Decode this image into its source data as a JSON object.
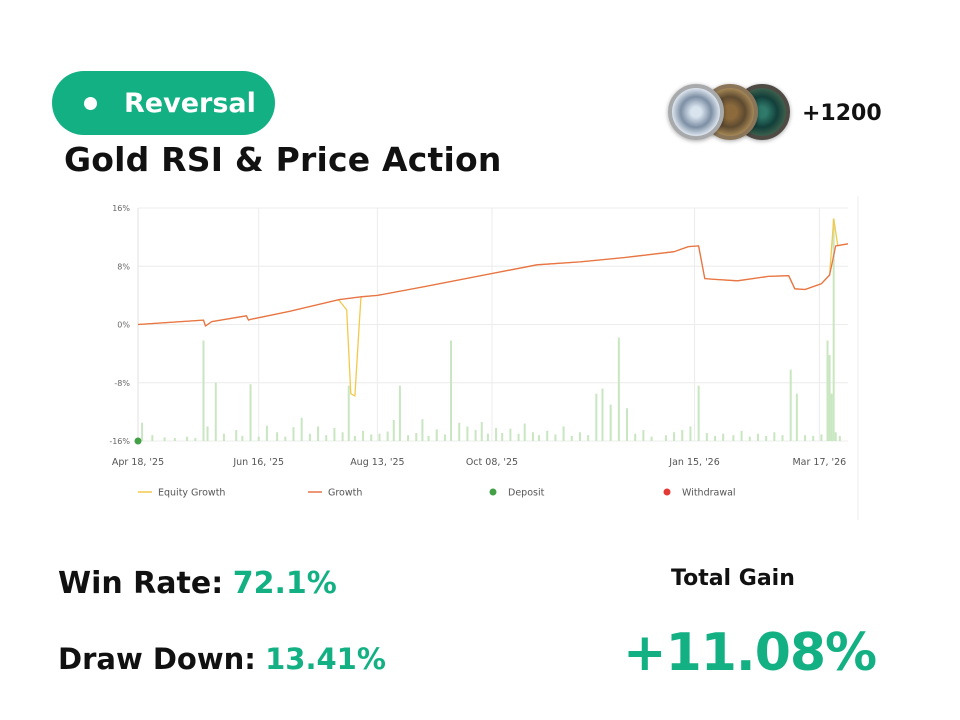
{
  "badge": {
    "label": "Reversal",
    "color": "#13b083"
  },
  "strategy": {
    "title": "Gold RSI & Price Action"
  },
  "coins": {
    "count_label": "+1200"
  },
  "stats": {
    "win_rate_label": "Win Rate:",
    "win_rate_value": "72.1%",
    "draw_down_label": "Draw Down:",
    "draw_down_value": "13.41%",
    "total_gain_label": "Total Gain",
    "total_gain_value": "+11.08%"
  },
  "chart_data": {
    "type": "line",
    "title": "",
    "xlabel": "",
    "ylabel": "",
    "y_ticks": [
      "16%",
      "8%",
      "0%",
      "-8%",
      "-16%"
    ],
    "ylim": [
      -16,
      16
    ],
    "x_ticks": [
      "Apr 18, '25",
      "Jun 16, '25",
      "Aug 13, '25",
      "Oct 08, '25",
      "Jan 15, '26",
      "Mar 17, '26"
    ],
    "x_tick_dates": [
      "2025-04-18",
      "2025-06-16",
      "2025-08-13",
      "2025-10-08",
      "2026-01-15",
      "2026-03-17"
    ],
    "xlim": [
      "2025-04-18",
      "2026-03-31"
    ],
    "grid": true,
    "legend": {
      "placement": "bottom",
      "entries": [
        "Equity Growth",
        "Growth",
        "Deposit",
        "Withdrawal"
      ]
    },
    "colors": {
      "equity_growth": "#f2c94c",
      "growth": "#e8734a",
      "deposit": "#43a047",
      "withdrawal": "#e53935",
      "bars": "#c8e6c0"
    },
    "series": [
      {
        "name": "Growth",
        "points": [
          [
            "2025-04-18",
            0.0
          ],
          [
            "2025-05-20",
            0.6
          ],
          [
            "2025-05-21",
            -0.2
          ],
          [
            "2025-05-24",
            0.4
          ],
          [
            "2025-06-10",
            1.2
          ],
          [
            "2025-06-11",
            0.6
          ],
          [
            "2025-06-12",
            0.7
          ],
          [
            "2025-07-01",
            1.8
          ],
          [
            "2025-07-25",
            3.4
          ],
          [
            "2025-08-05",
            3.8
          ],
          [
            "2025-08-13",
            4.0
          ],
          [
            "2025-09-05",
            5.2
          ],
          [
            "2025-10-08",
            7.0
          ],
          [
            "2025-10-30",
            8.2
          ],
          [
            "2025-11-20",
            8.6
          ],
          [
            "2025-12-12",
            9.2
          ],
          [
            "2026-01-05",
            10.0
          ],
          [
            "2026-01-12",
            10.7
          ],
          [
            "2026-01-17",
            10.8
          ],
          [
            "2026-01-20",
            6.3
          ],
          [
            "2026-01-25",
            6.2
          ],
          [
            "2026-02-05",
            6.0
          ],
          [
            "2026-02-20",
            6.6
          ],
          [
            "2026-03-02",
            6.7
          ],
          [
            "2026-03-05",
            4.9
          ],
          [
            "2026-03-10",
            4.8
          ],
          [
            "2026-03-18",
            5.6
          ],
          [
            "2026-03-22",
            6.8
          ],
          [
            "2026-03-25",
            10.8
          ],
          [
            "2026-03-31",
            11.08
          ]
        ]
      },
      {
        "name": "Equity Growth",
        "points": [
          [
            "2025-04-18",
            0.0
          ],
          [
            "2025-05-20",
            0.6
          ],
          [
            "2025-05-21",
            -0.2
          ],
          [
            "2025-05-24",
            0.4
          ],
          [
            "2025-06-10",
            1.2
          ],
          [
            "2025-06-11",
            0.6
          ],
          [
            "2025-06-12",
            0.7
          ],
          [
            "2025-07-01",
            1.8
          ],
          [
            "2025-07-25",
            3.4
          ],
          [
            "2025-07-29",
            2.0
          ],
          [
            "2025-07-31",
            -9.5
          ],
          [
            "2025-08-02",
            -9.8
          ],
          [
            "2025-08-04",
            -0.5
          ],
          [
            "2025-08-05",
            3.8
          ],
          [
            "2025-08-13",
            4.0
          ],
          [
            "2025-09-05",
            5.2
          ],
          [
            "2025-10-08",
            7.0
          ],
          [
            "2025-10-30",
            8.2
          ],
          [
            "2025-11-20",
            8.6
          ],
          [
            "2025-12-12",
            9.2
          ],
          [
            "2026-01-05",
            10.0
          ],
          [
            "2026-01-12",
            10.7
          ],
          [
            "2026-01-17",
            10.8
          ],
          [
            "2026-01-20",
            6.3
          ],
          [
            "2026-01-25",
            6.2
          ],
          [
            "2026-02-05",
            6.0
          ],
          [
            "2026-02-20",
            6.6
          ],
          [
            "2026-03-02",
            6.7
          ],
          [
            "2026-03-05",
            4.9
          ],
          [
            "2026-03-10",
            4.8
          ],
          [
            "2026-03-18",
            5.6
          ],
          [
            "2026-03-22",
            6.8
          ],
          [
            "2026-03-24",
            14.5
          ],
          [
            "2026-03-26",
            10.8
          ],
          [
            "2026-03-31",
            11.08
          ]
        ]
      },
      {
        "name": "Deposit",
        "points": [
          [
            "2025-04-18",
            -16
          ]
        ]
      }
    ],
    "bars": [
      [
        "2025-04-20",
        -13.5
      ],
      [
        "2025-04-25",
        -15.2
      ],
      [
        "2025-05-01",
        -15.5
      ],
      [
        "2025-05-06",
        -15.6
      ],
      [
        "2025-05-12",
        -15.4
      ],
      [
        "2025-05-16",
        -15.6
      ],
      [
        "2025-05-20",
        -2.2
      ],
      [
        "2025-05-22",
        -14.0
      ],
      [
        "2025-05-26",
        -8.0
      ],
      [
        "2025-05-30",
        -15.0
      ],
      [
        "2025-06-05",
        -14.5
      ],
      [
        "2025-06-08",
        -15.3
      ],
      [
        "2025-06-12",
        -8.2
      ],
      [
        "2025-06-16",
        -15.4
      ],
      [
        "2025-06-20",
        -13.9
      ],
      [
        "2025-06-25",
        -14.8
      ],
      [
        "2025-06-29",
        -15.4
      ],
      [
        "2025-07-03",
        -14.1
      ],
      [
        "2025-07-07",
        -12.8
      ],
      [
        "2025-07-11",
        -15.0
      ],
      [
        "2025-07-15",
        -14.0
      ],
      [
        "2025-07-19",
        -15.2
      ],
      [
        "2025-07-23",
        -14.2
      ],
      [
        "2025-07-27",
        -14.8
      ],
      [
        "2025-07-30",
        -8.4
      ],
      [
        "2025-08-02",
        -15.3
      ],
      [
        "2025-08-06",
        -14.6
      ],
      [
        "2025-08-10",
        -15.1
      ],
      [
        "2025-08-14",
        -15.0
      ],
      [
        "2025-08-18",
        -14.7
      ],
      [
        "2025-08-21",
        -13.1
      ],
      [
        "2025-08-24",
        -8.4
      ],
      [
        "2025-08-28",
        -15.2
      ],
      [
        "2025-09-01",
        -14.9
      ],
      [
        "2025-09-04",
        -13.0
      ],
      [
        "2025-09-07",
        -15.3
      ],
      [
        "2025-09-11",
        -14.4
      ],
      [
        "2025-09-15",
        -15.1
      ],
      [
        "2025-09-18",
        -2.2
      ],
      [
        "2025-09-22",
        -13.5
      ],
      [
        "2025-09-26",
        -14.0
      ],
      [
        "2025-09-30",
        -14.5
      ],
      [
        "2025-10-03",
        -13.4
      ],
      [
        "2025-10-06",
        -15.0
      ],
      [
        "2025-10-10",
        -14.2
      ],
      [
        "2025-10-13",
        -14.9
      ],
      [
        "2025-10-17",
        -14.3
      ],
      [
        "2025-10-21",
        -15.0
      ],
      [
        "2025-10-24",
        -13.6
      ],
      [
        "2025-10-28",
        -14.8
      ],
      [
        "2025-10-31",
        -15.2
      ],
      [
        "2025-11-04",
        -14.6
      ],
      [
        "2025-11-08",
        -15.1
      ],
      [
        "2025-11-12",
        -14.0
      ],
      [
        "2025-11-16",
        -15.3
      ],
      [
        "2025-11-20",
        -14.8
      ],
      [
        "2025-11-24",
        -15.2
      ],
      [
        "2025-11-28",
        -9.5
      ],
      [
        "2025-12-01",
        -8.8
      ],
      [
        "2025-12-05",
        -11.0
      ],
      [
        "2025-12-09",
        -1.8
      ],
      [
        "2025-12-13",
        -11.5
      ],
      [
        "2025-12-17",
        -15.0
      ],
      [
        "2025-12-21",
        -14.5
      ],
      [
        "2025-12-25",
        -15.4
      ],
      [
        "2026-01-01",
        -15.2
      ],
      [
        "2026-01-05",
        -14.8
      ],
      [
        "2026-01-09",
        -14.5
      ],
      [
        "2026-01-13",
        -14.0
      ],
      [
        "2026-01-17",
        -8.4
      ],
      [
        "2026-01-21",
        -14.9
      ],
      [
        "2026-01-25",
        -15.3
      ],
      [
        "2026-01-29",
        -15.0
      ],
      [
        "2026-02-03",
        -15.2
      ],
      [
        "2026-02-07",
        -14.6
      ],
      [
        "2026-02-11",
        -15.4
      ],
      [
        "2026-02-15",
        -15.0
      ],
      [
        "2026-02-19",
        -15.3
      ],
      [
        "2026-02-23",
        -14.8
      ],
      [
        "2026-02-27",
        -15.2
      ],
      [
        "2026-03-03",
        -6.2
      ],
      [
        "2026-03-06",
        -9.5
      ],
      [
        "2026-03-10",
        -15.2
      ],
      [
        "2026-03-14",
        -15.3
      ],
      [
        "2026-03-18",
        -15.1
      ],
      [
        "2026-03-21",
        -2.2
      ],
      [
        "2026-03-22",
        -4.2
      ],
      [
        "2026-03-23",
        -9.5
      ],
      [
        "2026-03-24",
        14.5
      ],
      [
        "2026-03-25",
        -14.8
      ],
      [
        "2026-03-27",
        -15.3
      ]
    ]
  }
}
